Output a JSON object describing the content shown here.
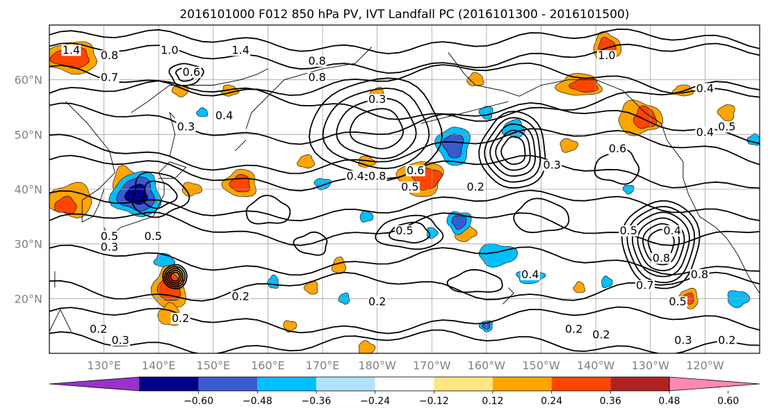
{
  "title": "2016101000 F012 850 hPa PV, IVT Landfall PC (2016101300 - 2016101500)",
  "map": {
    "lat_labels": [
      "60°N",
      "50°N",
      "40°N",
      "30°N",
      "20°N"
    ],
    "lon_labels": [
      "130°E",
      "140°E",
      "150°E",
      "160°E",
      "170°E",
      "180°W",
      "170°W",
      "160°W",
      "150°W",
      "140°W",
      "130°W",
      "120°W"
    ],
    "lat_range": [
      10,
      70
    ],
    "lon_range_east": [
      120,
      250
    ],
    "grid": true,
    "contour_color": "#000000",
    "coastline_color": "#000000",
    "contour_labels": [
      {
        "text": "1.0",
        "lon": 142,
        "lat": 65
      },
      {
        "text": "1.4",
        "lon": 155,
        "lat": 65
      },
      {
        "text": "0.8",
        "lon": 131,
        "lat": 64
      },
      {
        "text": "1.4",
        "lon": 124,
        "lat": 65
      },
      {
        "text": "0.8",
        "lon": 169,
        "lat": 63
      },
      {
        "text": "0.8",
        "lon": 169,
        "lat": 60
      },
      {
        "text": "0.7",
        "lon": 131,
        "lat": 60
      },
      {
        "text": "0.6",
        "lon": 146,
        "lat": 61
      },
      {
        "text": "0.3",
        "lon": 180,
        "lat": 56
      },
      {
        "text": "0.3",
        "lon": 145,
        "lat": 51
      },
      {
        "text": "0.4",
        "lon": 152,
        "lat": 53
      },
      {
        "text": "0.4",
        "lon": 176,
        "lat": 42
      },
      {
        "text": "0.8",
        "lon": 180,
        "lat": 42
      },
      {
        "text": "0.6",
        "lon": 187,
        "lat": 43
      },
      {
        "text": "0.5",
        "lon": 186,
        "lat": 40
      },
      {
        "text": "0.2",
        "lon": 198,
        "lat": 40
      },
      {
        "text": "0.5",
        "lon": 185,
        "lat": 32
      },
      {
        "text": "0.5",
        "lon": 226,
        "lat": 32
      },
      {
        "text": "0.4",
        "lon": 234,
        "lat": 32
      },
      {
        "text": "0.8",
        "lon": 232,
        "lat": 27
      },
      {
        "text": "0.8",
        "lon": 239,
        "lat": 24
      },
      {
        "text": "0.7",
        "lon": 229,
        "lat": 22
      },
      {
        "text": "0.5",
        "lon": 235,
        "lat": 19
      },
      {
        "text": "0.4",
        "lon": 208,
        "lat": 24
      },
      {
        "text": "0.2",
        "lon": 180,
        "lat": 19
      },
      {
        "text": "0.2",
        "lon": 216,
        "lat": 14
      },
      {
        "text": "0.5",
        "lon": 131,
        "lat": 31
      },
      {
        "text": "0.5",
        "lon": 139,
        "lat": 31
      },
      {
        "text": "0.3",
        "lon": 131,
        "lat": 29
      },
      {
        "text": "0.2",
        "lon": 129,
        "lat": 14
      },
      {
        "text": "0.3",
        "lon": 133,
        "lat": 12
      },
      {
        "text": "0.2",
        "lon": 144,
        "lat": 16
      },
      {
        "text": "0.2",
        "lon": 155,
        "lat": 20
      },
      {
        "text": "0.6",
        "lon": 224,
        "lat": 47
      },
      {
        "text": "0.3",
        "lon": 212,
        "lat": 44
      },
      {
        "text": "0.4",
        "lon": 240,
        "lat": 58
      },
      {
        "text": "0.4",
        "lon": 240,
        "lat": 50
      },
      {
        "text": "0.5",
        "lon": 244,
        "lat": 51
      },
      {
        "text": "1.0",
        "lon": 222,
        "lat": 64
      },
      {
        "text": "0.3",
        "lon": 236,
        "lat": 12
      },
      {
        "text": "0.2",
        "lon": 244,
        "lat": 12
      },
      {
        "text": "0.2",
        "lon": 221,
        "lat": 13
      }
    ]
  },
  "colorbar": {
    "tick_labels": [
      "−0.60",
      "−0.48",
      "−0.36",
      "−0.24",
      "−0.12",
      "0.12",
      "0.24",
      "0.36",
      "0.48",
      "0.60"
    ],
    "colors": [
      "#9932cc",
      "#00008b",
      "#3a5bcf",
      "#00bfff",
      "#b0e2ff",
      "#ffffff",
      "#ffe680",
      "#ffa500",
      "#ff4500",
      "#b22222",
      "#ff88b4"
    ],
    "extend": "both"
  },
  "shading_colors": {
    "pos_light": "#ffa500",
    "pos_strong": "#ff4500",
    "pos_max": "#b22222",
    "pos_faint": "#ffe680",
    "neg_light": "#00bfff",
    "neg_strong": "#3a5bcf",
    "neg_max": "#00008b",
    "neg_faint": "#b0e2ff"
  }
}
